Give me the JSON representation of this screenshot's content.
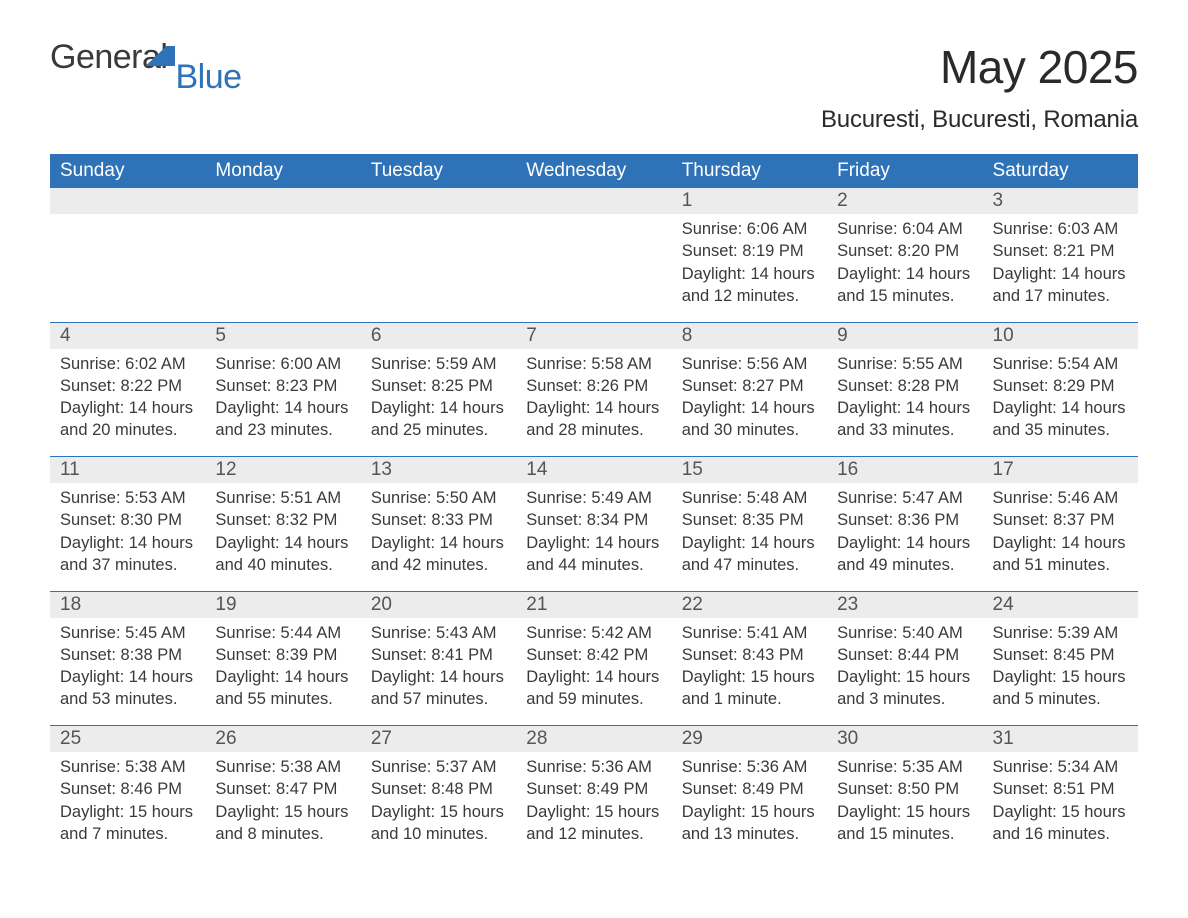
{
  "brand": {
    "word1": "General",
    "word2": "Blue"
  },
  "title": "May 2025",
  "location": "Bucuresti, Bucuresti, Romania",
  "colors": {
    "header_bg": "#2e72b8",
    "header_text": "#ffffff",
    "daynum_bg": "#ececec",
    "rule": "#2e72b8",
    "text": "#3a3a3a",
    "logo_accent": "#2e72b8",
    "page_bg": "#ffffff"
  },
  "typography": {
    "month_title_fontsize": 46,
    "location_fontsize": 24,
    "weekday_fontsize": 19,
    "daynum_fontsize": 19,
    "detail_fontsize": 16.5
  },
  "weekdays": [
    "Sunday",
    "Monday",
    "Tuesday",
    "Wednesday",
    "Thursday",
    "Friday",
    "Saturday"
  ],
  "weeks": [
    [
      null,
      null,
      null,
      null,
      {
        "n": "1",
        "sunrise": "Sunrise: 6:06 AM",
        "sunset": "Sunset: 8:19 PM",
        "daylight": "Daylight: 14 hours and 12 minutes."
      },
      {
        "n": "2",
        "sunrise": "Sunrise: 6:04 AM",
        "sunset": "Sunset: 8:20 PM",
        "daylight": "Daylight: 14 hours and 15 minutes."
      },
      {
        "n": "3",
        "sunrise": "Sunrise: 6:03 AM",
        "sunset": "Sunset: 8:21 PM",
        "daylight": "Daylight: 14 hours and 17 minutes."
      }
    ],
    [
      {
        "n": "4",
        "sunrise": "Sunrise: 6:02 AM",
        "sunset": "Sunset: 8:22 PM",
        "daylight": "Daylight: 14 hours and 20 minutes."
      },
      {
        "n": "5",
        "sunrise": "Sunrise: 6:00 AM",
        "sunset": "Sunset: 8:23 PM",
        "daylight": "Daylight: 14 hours and 23 minutes."
      },
      {
        "n": "6",
        "sunrise": "Sunrise: 5:59 AM",
        "sunset": "Sunset: 8:25 PM",
        "daylight": "Daylight: 14 hours and 25 minutes."
      },
      {
        "n": "7",
        "sunrise": "Sunrise: 5:58 AM",
        "sunset": "Sunset: 8:26 PM",
        "daylight": "Daylight: 14 hours and 28 minutes."
      },
      {
        "n": "8",
        "sunrise": "Sunrise: 5:56 AM",
        "sunset": "Sunset: 8:27 PM",
        "daylight": "Daylight: 14 hours and 30 minutes."
      },
      {
        "n": "9",
        "sunrise": "Sunrise: 5:55 AM",
        "sunset": "Sunset: 8:28 PM",
        "daylight": "Daylight: 14 hours and 33 minutes."
      },
      {
        "n": "10",
        "sunrise": "Sunrise: 5:54 AM",
        "sunset": "Sunset: 8:29 PM",
        "daylight": "Daylight: 14 hours and 35 minutes."
      }
    ],
    [
      {
        "n": "11",
        "sunrise": "Sunrise: 5:53 AM",
        "sunset": "Sunset: 8:30 PM",
        "daylight": "Daylight: 14 hours and 37 minutes."
      },
      {
        "n": "12",
        "sunrise": "Sunrise: 5:51 AM",
        "sunset": "Sunset: 8:32 PM",
        "daylight": "Daylight: 14 hours and 40 minutes."
      },
      {
        "n": "13",
        "sunrise": "Sunrise: 5:50 AM",
        "sunset": "Sunset: 8:33 PM",
        "daylight": "Daylight: 14 hours and 42 minutes."
      },
      {
        "n": "14",
        "sunrise": "Sunrise: 5:49 AM",
        "sunset": "Sunset: 8:34 PM",
        "daylight": "Daylight: 14 hours and 44 minutes."
      },
      {
        "n": "15",
        "sunrise": "Sunrise: 5:48 AM",
        "sunset": "Sunset: 8:35 PM",
        "daylight": "Daylight: 14 hours and 47 minutes."
      },
      {
        "n": "16",
        "sunrise": "Sunrise: 5:47 AM",
        "sunset": "Sunset: 8:36 PM",
        "daylight": "Daylight: 14 hours and 49 minutes."
      },
      {
        "n": "17",
        "sunrise": "Sunrise: 5:46 AM",
        "sunset": "Sunset: 8:37 PM",
        "daylight": "Daylight: 14 hours and 51 minutes."
      }
    ],
    [
      {
        "n": "18",
        "sunrise": "Sunrise: 5:45 AM",
        "sunset": "Sunset: 8:38 PM",
        "daylight": "Daylight: 14 hours and 53 minutes."
      },
      {
        "n": "19",
        "sunrise": "Sunrise: 5:44 AM",
        "sunset": "Sunset: 8:39 PM",
        "daylight": "Daylight: 14 hours and 55 minutes."
      },
      {
        "n": "20",
        "sunrise": "Sunrise: 5:43 AM",
        "sunset": "Sunset: 8:41 PM",
        "daylight": "Daylight: 14 hours and 57 minutes."
      },
      {
        "n": "21",
        "sunrise": "Sunrise: 5:42 AM",
        "sunset": "Sunset: 8:42 PM",
        "daylight": "Daylight: 14 hours and 59 minutes."
      },
      {
        "n": "22",
        "sunrise": "Sunrise: 5:41 AM",
        "sunset": "Sunset: 8:43 PM",
        "daylight": "Daylight: 15 hours and 1 minute."
      },
      {
        "n": "23",
        "sunrise": "Sunrise: 5:40 AM",
        "sunset": "Sunset: 8:44 PM",
        "daylight": "Daylight: 15 hours and 3 minutes."
      },
      {
        "n": "24",
        "sunrise": "Sunrise: 5:39 AM",
        "sunset": "Sunset: 8:45 PM",
        "daylight": "Daylight: 15 hours and 5 minutes."
      }
    ],
    [
      {
        "n": "25",
        "sunrise": "Sunrise: 5:38 AM",
        "sunset": "Sunset: 8:46 PM",
        "daylight": "Daylight: 15 hours and 7 minutes."
      },
      {
        "n": "26",
        "sunrise": "Sunrise: 5:38 AM",
        "sunset": "Sunset: 8:47 PM",
        "daylight": "Daylight: 15 hours and 8 minutes."
      },
      {
        "n": "27",
        "sunrise": "Sunrise: 5:37 AM",
        "sunset": "Sunset: 8:48 PM",
        "daylight": "Daylight: 15 hours and 10 minutes."
      },
      {
        "n": "28",
        "sunrise": "Sunrise: 5:36 AM",
        "sunset": "Sunset: 8:49 PM",
        "daylight": "Daylight: 15 hours and 12 minutes."
      },
      {
        "n": "29",
        "sunrise": "Sunrise: 5:36 AM",
        "sunset": "Sunset: 8:49 PM",
        "daylight": "Daylight: 15 hours and 13 minutes."
      },
      {
        "n": "30",
        "sunrise": "Sunrise: 5:35 AM",
        "sunset": "Sunset: 8:50 PM",
        "daylight": "Daylight: 15 hours and 15 minutes."
      },
      {
        "n": "31",
        "sunrise": "Sunrise: 5:34 AM",
        "sunset": "Sunset: 8:51 PM",
        "daylight": "Daylight: 15 hours and 16 minutes."
      }
    ]
  ]
}
